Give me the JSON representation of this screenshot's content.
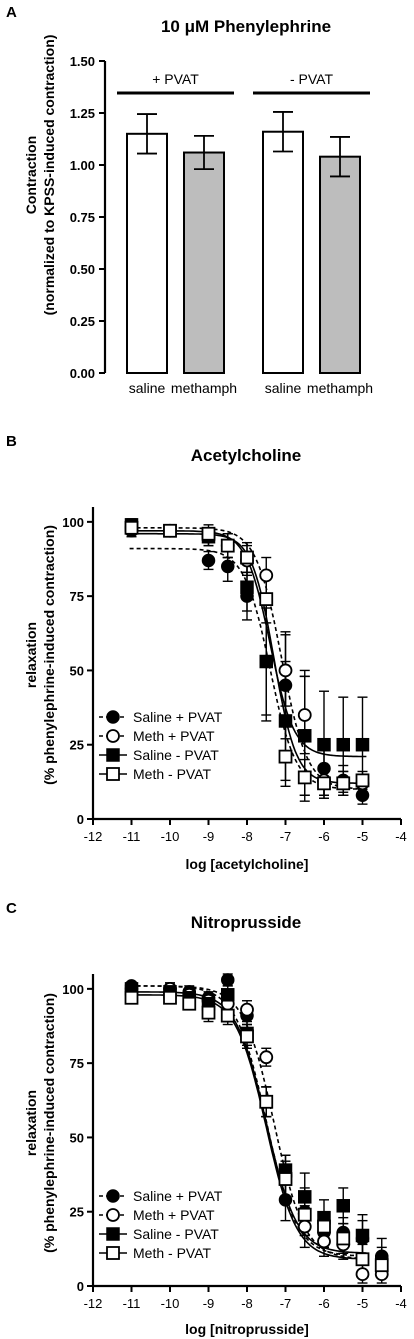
{
  "chart_data": [
    {
      "panel": "A",
      "type": "bar",
      "title": "10 μM Phenylephrine",
      "ylabel_line1": "Contraction",
      "ylabel_line2": "(normalized to KPSS-induced contraction)",
      "ylim": [
        0,
        1.5
      ],
      "yticks": [
        "0.00",
        "0.25",
        "0.50",
        "0.75",
        "1.00",
        "1.25",
        "1.50"
      ],
      "categories": [
        "saline",
        "methamph",
        "saline",
        "methamph"
      ],
      "values": [
        1.15,
        1.06,
        1.16,
        1.04
      ],
      "errors": [
        0.095,
        0.08,
        0.095,
        0.095
      ],
      "fills": [
        "#ffffff",
        "#bdbdbd",
        "#ffffff",
        "#bdbdbd"
      ],
      "groups": [
        {
          "label": "+ PVAT",
          "bars": [
            0,
            1
          ]
        },
        {
          "label": "- PVAT",
          "bars": [
            2,
            3
          ]
        }
      ]
    },
    {
      "panel": "B",
      "type": "scatter",
      "title": "Acetylcholine",
      "xlabel": "log [acetylcholine]",
      "ylabel_line1": "relaxation",
      "ylabel_line2": "(% phenylephrine-induced contraction)",
      "xlim": [
        -12,
        -4
      ],
      "ylim": [
        0,
        105
      ],
      "xticks": [
        "-12",
        "-11",
        "-10",
        "-9",
        "-8",
        "-7",
        "-6",
        "-5",
        "-4"
      ],
      "yticks": [
        "0",
        "25",
        "50",
        "75",
        "100"
      ],
      "x": [
        -11,
        -10,
        -9,
        -8.5,
        -8,
        -7.5,
        -7,
        -6.5,
        -6,
        -5.5,
        -5
      ],
      "series": [
        {
          "name": "Saline + PVAT",
          "marker": "filled-circle",
          "dash": true,
          "fit": {
            "top": 91,
            "bottom": 10,
            "ec50": -7.4,
            "hill": 1.3
          },
          "values": [
            97,
            97,
            87,
            85,
            75,
            53,
            45,
            28,
            17,
            13,
            8
          ],
          "errors": [
            2,
            2,
            3,
            5,
            8,
            20,
            18,
            20,
            10,
            5,
            3
          ]
        },
        {
          "name": "Meth + PVAT",
          "marker": "open-circle",
          "dash": true,
          "fit": {
            "top": 98,
            "bottom": 10,
            "ec50": -7.1,
            "hill": 1.3
          },
          "values": [
            98,
            97,
            95,
            92,
            87,
            82,
            50,
            35,
            13,
            12,
            12
          ],
          "errors": [
            2,
            2,
            3,
            4,
            5,
            6,
            12,
            15,
            5,
            4,
            3
          ]
        },
        {
          "name": "Saline - PVAT",
          "marker": "filled-square",
          "dash": false,
          "fit": {
            "top": 97,
            "bottom": 21,
            "ec50": -7.4,
            "hill": 1.4
          },
          "values": [
            99,
            97,
            95,
            92,
            78,
            53,
            33,
            28,
            25,
            25,
            25
          ],
          "errors": [
            2,
            2,
            3,
            4,
            8,
            18,
            20,
            20,
            18,
            16,
            16
          ]
        },
        {
          "name": "Meth - PVAT",
          "marker": "open-square",
          "dash": false,
          "fit": {
            "top": 96,
            "bottom": 12,
            "ec50": -7.3,
            "hill": 1.5
          },
          "values": [
            98,
            97,
            96,
            92,
            88,
            74,
            21,
            14,
            12,
            12,
            13
          ],
          "errors": [
            2,
            2,
            3,
            4,
            5,
            8,
            10,
            8,
            4,
            4,
            3
          ]
        }
      ],
      "legend_position": "bottom-left"
    },
    {
      "panel": "C",
      "type": "scatter",
      "title": "Nitroprusside",
      "xlabel": "log [nitroprusside]",
      "ylabel_line1": "relaxation",
      "ylabel_line2": "(% phenylephrine-induced contraction)",
      "xlim": [
        -12,
        -4
      ],
      "ylim": [
        0,
        105
      ],
      "xticks": [
        "-12",
        "-11",
        "-10",
        "-9",
        "-8",
        "-7",
        "-6",
        "-5",
        "-4"
      ],
      "yticks": [
        "0",
        "25",
        "50",
        "75",
        "100"
      ],
      "x": [
        -11,
        -10,
        -9.5,
        -9,
        -8.5,
        -8,
        -7.5,
        -7,
        -6.5,
        -6,
        -5.5,
        -5,
        -4.5
      ],
      "series": [
        {
          "name": "Saline + PVAT",
          "marker": "filled-circle",
          "dash": true,
          "fit": {
            "top": 101,
            "bottom": 10,
            "ec50": -7.5,
            "hill": 1.1
          },
          "values": [
            101,
            100,
            99,
            97,
            103,
            91,
            62,
            29,
            25,
            18,
            18,
            16,
            10
          ],
          "errors": [
            1,
            2,
            2,
            2,
            2,
            3,
            5,
            7,
            8,
            5,
            5,
            6,
            6
          ]
        },
        {
          "name": "Meth + PVAT",
          "marker": "open-circle",
          "dash": true,
          "fit": {
            "top": 101,
            "bottom": 9,
            "ec50": -7.3,
            "hill": 1.1
          },
          "values": [
            100,
            100,
            98,
            96,
            95,
            93,
            77,
            37,
            20,
            15,
            14,
            4,
            4
          ],
          "errors": [
            1,
            2,
            2,
            2,
            2,
            3,
            3,
            7,
            7,
            5,
            5,
            3,
            3
          ]
        },
        {
          "name": "Saline - PVAT",
          "marker": "filled-square",
          "dash": false,
          "fit": {
            "top": 99,
            "bottom": 11,
            "ec50": -7.5,
            "hill": 1.1
          },
          "values": [
            100,
            99,
            97,
            95,
            98,
            85,
            62,
            39,
            30,
            23,
            27,
            17,
            8
          ],
          "errors": [
            1,
            2,
            2,
            3,
            3,
            4,
            5,
            5,
            8,
            6,
            6,
            7,
            5
          ]
        },
        {
          "name": "Meth - PVAT",
          "marker": "open-square",
          "dash": false,
          "fit": {
            "top": 98,
            "bottom": 9,
            "ec50": -7.5,
            "hill": 1.1
          },
          "values": [
            97,
            97,
            95,
            92,
            91,
            84,
            62,
            36,
            24,
            20,
            16,
            9,
            7
          ],
          "errors": [
            2,
            2,
            2,
            3,
            3,
            4,
            5,
            6,
            7,
            5,
            5,
            5,
            4
          ]
        }
      ],
      "legend_position": "bottom-left"
    }
  ]
}
